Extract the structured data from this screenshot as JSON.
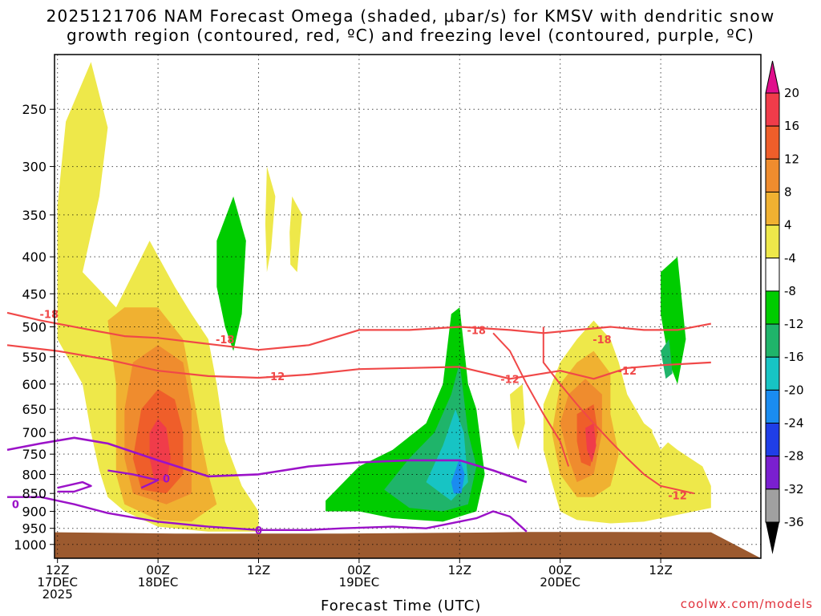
{
  "chart_data": {
    "type": "time-height cross-section",
    "title_line1": "2025121706 NAM Forecast Omega (shaded, μbar/s) for KMSV with dendritic snow",
    "title_line2": "growth region (contoured, red, ºC) and freezing level (contoured, purple, ºC)",
    "xlabel": "Forecast Time (UTC)",
    "ylabel": "",
    "pressure_levels": [
      "250",
      "300",
      "350",
      "400",
      "450",
      "500",
      "550",
      "600",
      "650",
      "700",
      "750",
      "800",
      "850",
      "900",
      "950",
      "1000"
    ],
    "x_ticks": [
      {
        "hour": 6,
        "lines": [
          "12Z",
          "17DEC",
          "2025"
        ]
      },
      {
        "hour": 18,
        "lines": [
          "00Z",
          "18DEC"
        ]
      },
      {
        "hour": 30,
        "lines": [
          "12Z"
        ]
      },
      {
        "hour": 42,
        "lines": [
          "00Z",
          "19DEC"
        ]
      },
      {
        "hour": 54,
        "lines": [
          "12Z"
        ]
      },
      {
        "hour": 66,
        "lines": [
          "00Z",
          "20DEC"
        ]
      },
      {
        "hour": 78,
        "lines": [
          "12Z"
        ]
      }
    ],
    "colorbar": {
      "labels": [
        "20",
        "16",
        "12",
        "8",
        "4",
        "-4",
        "-8",
        "-12",
        "-16",
        "-20",
        "-24",
        "-28",
        "-32",
        "-36"
      ],
      "colors": [
        "#f03c4a",
        "#ef5e2a",
        "#ef8c2e",
        "#f0b131",
        "#eee84a",
        "#ffffff",
        "#00cc00",
        "#1fb46a",
        "#17c4c4",
        "#1a8cf0",
        "#1f3ee8",
        "#7a1fd0",
        "#a21ecb",
        "#a0a0a0"
      ],
      "top_arrow_color": "#e00f8c",
      "bottom_arrow_color": "#000000"
    },
    "contour_labels": {
      "dgz_red": [
        "-18",
        "-18",
        "-12",
        "-18",
        "-12",
        "-18",
        "-12",
        "-12"
      ],
      "freezing_purple": [
        "0",
        "0",
        "0"
      ]
    },
    "series": [
      {
        "name": "-18C isotherm (red)",
        "hours": [
          0,
          4,
          10,
          14,
          18,
          24,
          30,
          36,
          42,
          48,
          54,
          60,
          64,
          68,
          72,
          76,
          80,
          84
        ],
        "pressure": [
          478,
          490,
          505,
          515,
          518,
          528,
          538,
          530,
          505,
          505,
          500,
          505,
          510,
          505,
          500,
          505,
          505,
          495
        ]
      },
      {
        "name": "-12C isotherm (red)",
        "hours": [
          0,
          6,
          12,
          18,
          24,
          30,
          36,
          42,
          48,
          54,
          60,
          66,
          70,
          74,
          78,
          84
        ],
        "pressure": [
          530,
          540,
          555,
          575,
          585,
          588,
          582,
          572,
          570,
          568,
          590,
          575,
          590,
          570,
          565,
          560
        ]
      },
      {
        "name": "0C freezing level (purple)",
        "hours": [
          0,
          4,
          8,
          12,
          18,
          24,
          30,
          36,
          42,
          48,
          54,
          58,
          62
        ],
        "pressure": [
          740,
          725,
          712,
          725,
          765,
          805,
          800,
          780,
          770,
          765,
          765,
          790,
          820
        ]
      }
    ],
    "terrain_color": "#9c5a2f",
    "credit": "coolwx.com/models"
  }
}
